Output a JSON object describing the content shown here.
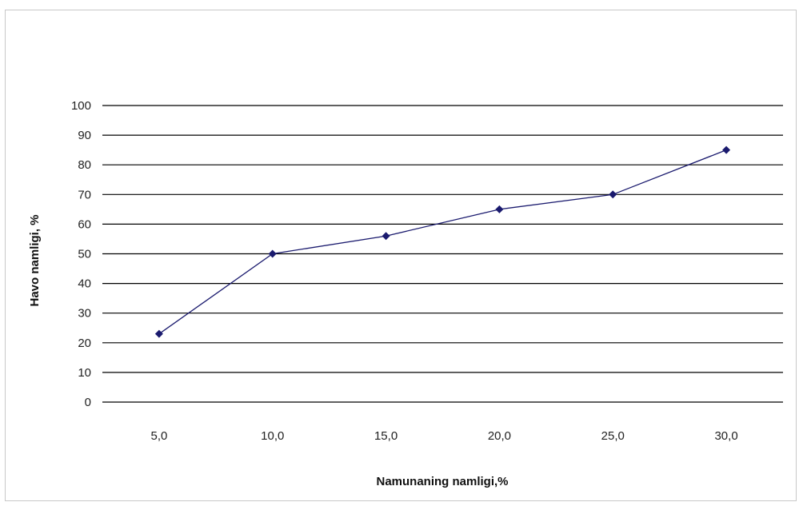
{
  "chart_data": {
    "type": "line",
    "title": "",
    "xlabel": "Namunaning namligi,%",
    "ylabel": "Havo namligi, %",
    "categories": [
      "5,0",
      "10,0",
      "15,0",
      "20,0",
      "25,0",
      "30,0"
    ],
    "series": [
      {
        "values": [
          23,
          50,
          56,
          65,
          70,
          85
        ],
        "color": "#1a1a6e",
        "marker": "diamond"
      }
    ],
    "ylim": [
      0,
      100
    ],
    "yticks": [
      0,
      10,
      20,
      30,
      40,
      50,
      60,
      70,
      80,
      90,
      100
    ],
    "grid": "horizontal",
    "legend": "none"
  }
}
